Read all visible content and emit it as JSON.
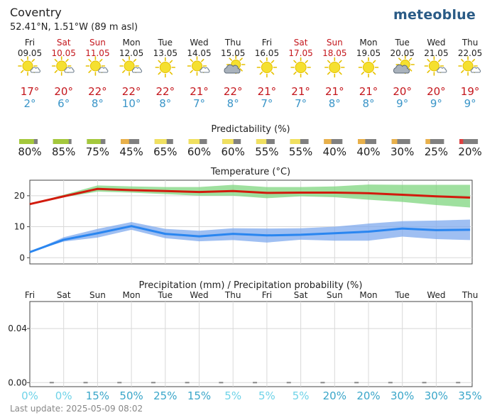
{
  "header": {
    "city": "Coventry",
    "coords": "52.41°N, 1.51°W (89 m asl)",
    "logo": "meteoblue"
  },
  "days": [
    {
      "day": "Fri",
      "date": "09.05",
      "weekend": false,
      "icon": "sun-cloud-icon",
      "tmax": "17°",
      "tmin": "2°",
      "pred": 80,
      "pred_color": "#a4c83c",
      "pred_label": "80%",
      "precip_prob": "0%",
      "prob_color": "#6fd3e8"
    },
    {
      "day": "Sat",
      "date": "10.05",
      "weekend": true,
      "icon": "sun-cloud-icon",
      "tmax": "20°",
      "tmin": "6°",
      "pred": 85,
      "pred_color": "#a4c83c",
      "pred_label": "85%",
      "precip_prob": "0%",
      "prob_color": "#6fd3e8"
    },
    {
      "day": "Sun",
      "date": "11.05",
      "weekend": true,
      "icon": "sun-cloud-icon",
      "tmax": "22°",
      "tmin": "8°",
      "pred": 75,
      "pred_color": "#a4c83c",
      "pred_label": "75%",
      "precip_prob": "15%",
      "prob_color": "#3aa6c9"
    },
    {
      "day": "Mon",
      "date": "12.05",
      "weekend": false,
      "icon": "sun-cloud-icon",
      "tmax": "22°",
      "tmin": "10°",
      "pred": 45,
      "pred_color": "#e8b04a",
      "pred_label": "45%",
      "precip_prob": "50%",
      "prob_color": "#3aa6c9"
    },
    {
      "day": "Tue",
      "date": "13.05",
      "weekend": false,
      "icon": "sun-icon",
      "tmax": "22°",
      "tmin": "8°",
      "pred": 65,
      "pred_color": "#f0e060",
      "pred_label": "65%",
      "precip_prob": "25%",
      "prob_color": "#3aa6c9"
    },
    {
      "day": "Wed",
      "date": "14.05",
      "weekend": false,
      "icon": "sun-cloud-icon",
      "tmax": "21°",
      "tmin": "7°",
      "pred": 60,
      "pred_color": "#f0e060",
      "pred_label": "60%",
      "precip_prob": "15%",
      "prob_color": "#3aa6c9"
    },
    {
      "day": "Thu",
      "date": "15.05",
      "weekend": false,
      "icon": "cloud-sun-icon",
      "tmax": "22°",
      "tmin": "8°",
      "pred": 60,
      "pred_color": "#f0e060",
      "pred_label": "60%",
      "precip_prob": "5%",
      "prob_color": "#6fd3e8"
    },
    {
      "day": "Fri",
      "date": "16.05",
      "weekend": false,
      "icon": "sun-icon",
      "tmax": "21°",
      "tmin": "7°",
      "pred": 55,
      "pred_color": "#f0e060",
      "pred_label": "55%",
      "precip_prob": "5%",
      "prob_color": "#6fd3e8"
    },
    {
      "day": "Sat",
      "date": "17.05",
      "weekend": true,
      "icon": "sun-icon",
      "tmax": "21°",
      "tmin": "7°",
      "pred": 55,
      "pred_color": "#f0e060",
      "pred_label": "55%",
      "precip_prob": "5%",
      "prob_color": "#6fd3e8"
    },
    {
      "day": "Sun",
      "date": "18.05",
      "weekend": true,
      "icon": "sun-icon",
      "tmax": "21°",
      "tmin": "8°",
      "pred": 40,
      "pred_color": "#e8b04a",
      "pred_label": "40%",
      "precip_prob": "20%",
      "prob_color": "#3aa6c9"
    },
    {
      "day": "Mon",
      "date": "19.05",
      "weekend": false,
      "icon": "sun-icon",
      "tmax": "21°",
      "tmin": "8°",
      "pred": 40,
      "pred_color": "#e8b04a",
      "pred_label": "40%",
      "precip_prob": "20%",
      "prob_color": "#3aa6c9"
    },
    {
      "day": "Tue",
      "date": "20.05",
      "weekend": false,
      "icon": "cloud-sun-icon",
      "tmax": "20°",
      "tmin": "9°",
      "pred": 30,
      "pred_color": "#e8b04a",
      "pred_label": "30%",
      "precip_prob": "30%",
      "prob_color": "#3aa6c9"
    },
    {
      "day": "Wed",
      "date": "21.05",
      "weekend": false,
      "icon": "sun-cloud-icon",
      "tmax": "20°",
      "tmin": "9°",
      "pred": 25,
      "pred_color": "#e8b04a",
      "pred_label": "25%",
      "precip_prob": "30%",
      "prob_color": "#3aa6c9"
    },
    {
      "day": "Thu",
      "date": "22.05",
      "weekend": false,
      "icon": "sun-cloud-icon",
      "tmax": "19°",
      "tmin": "9°",
      "pred": 20,
      "pred_color": "#e04040",
      "pred_label": "20%",
      "precip_prob": "35%",
      "prob_color": "#3aa6c9"
    }
  ],
  "colors": {
    "weekend_red": "#c4161c",
    "tmax_red": "#c4161c",
    "tmin_blue": "#3a95c8",
    "max_line": "#d21b0d",
    "max_band": "#7fd67f",
    "min_line": "#2a86f0",
    "min_band": "#7faaee",
    "pred_gray": "#808080",
    "sun": "#f5e030",
    "cloud": "#a9b2bc"
  },
  "predictability_title": "Predictability (%)",
  "temperature_title": "Temperature (°C)",
  "precip_title": "Precipitation (mm) / Precipitation probability (%)",
  "chart_data": [
    {
      "type": "line",
      "title": "Temperature (°C)",
      "ylim": [
        -2,
        25
      ],
      "yticks": [
        "0",
        "10",
        "20"
      ],
      "x": [
        "Fri",
        "Sat",
        "Sun",
        "Mon",
        "Tue",
        "Wed",
        "Thu",
        "Fri",
        "Sat",
        "Sun",
        "Mon",
        "Tue",
        "Wed",
        "Thu"
      ],
      "series": [
        {
          "values": [
            17.3,
            19.8,
            22.2,
            21.8,
            21.5,
            21.2,
            21.5,
            20.9,
            21.0,
            21.0,
            20.8,
            20.3,
            19.8,
            19.4
          ],
          "band_low": [
            17.3,
            19.5,
            21.3,
            21.0,
            20.5,
            20.0,
            20.0,
            19.2,
            19.8,
            19.5,
            18.7,
            18.0,
            17.0,
            16.2
          ],
          "band_high": [
            17.3,
            20.3,
            23.3,
            23.0,
            22.8,
            22.8,
            23.5,
            22.8,
            22.8,
            23.0,
            23.6,
            23.5,
            23.5,
            23.5
          ]
        },
        {
          "values": [
            1.8,
            5.8,
            7.9,
            10.2,
            7.7,
            6.9,
            7.7,
            7.2,
            7.4,
            7.9,
            8.4,
            9.4,
            8.9,
            9.0
          ],
          "band_low": [
            1.8,
            5.2,
            6.5,
            9.0,
            6.3,
            5.3,
            5.7,
            4.9,
            5.8,
            5.5,
            5.5,
            6.8,
            6.0,
            5.7
          ],
          "band_high": [
            1.8,
            6.6,
            9.3,
            11.5,
            9.3,
            8.7,
            9.5,
            9.4,
            9.5,
            10.0,
            11.0,
            11.8,
            12.0,
            12.3
          ]
        }
      ]
    },
    {
      "type": "bar",
      "title": "Precipitation (mm) / Precipitation probability (%)",
      "ylim": [
        -0.003,
        0.06
      ],
      "yticks": [
        "0.00",
        "0.04"
      ],
      "x": [
        "Fri",
        "Sat",
        "Sun",
        "Mon",
        "Tue",
        "Wed",
        "Thu",
        "Fri",
        "Sat",
        "Sun",
        "Mon",
        "Tue",
        "Wed",
        "Thu"
      ],
      "values": [
        0,
        0,
        0,
        0,
        0,
        0,
        0,
        0,
        0,
        0,
        0,
        0,
        0,
        0
      ],
      "probability": [
        0,
        0,
        15,
        50,
        25,
        15,
        5,
        5,
        5,
        20,
        20,
        30,
        30,
        35
      ]
    }
  ],
  "footer": {
    "update": "Last update: 2025-05-09 08:02"
  }
}
